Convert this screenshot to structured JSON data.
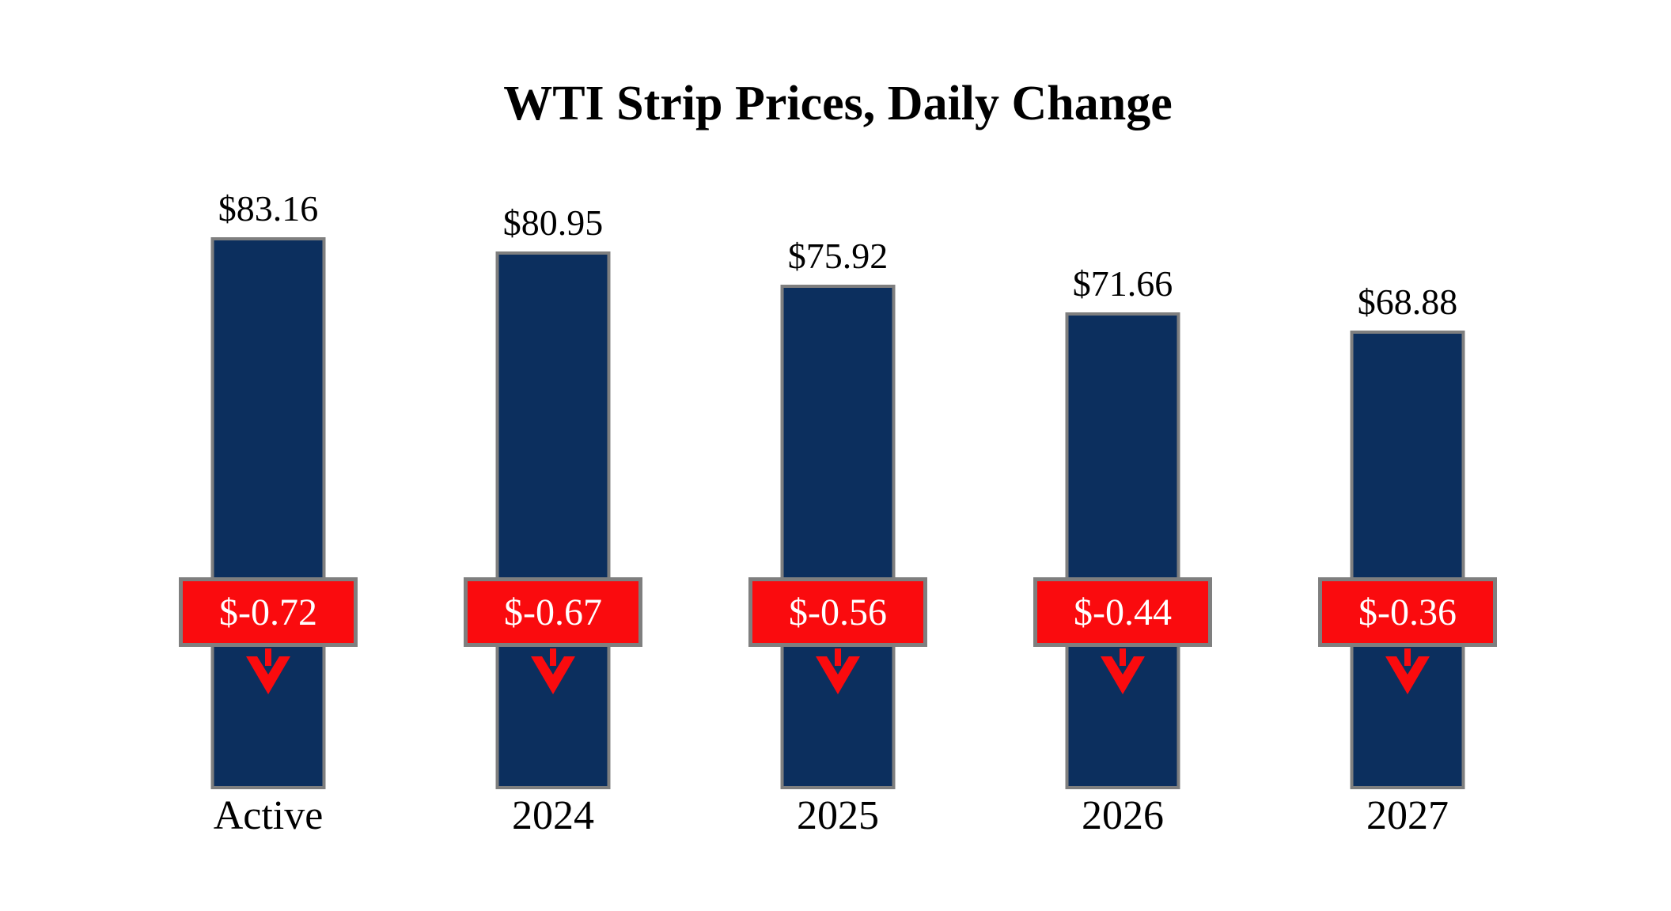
{
  "chart_data": {
    "type": "bar",
    "title": "WTI Strip Prices, Daily Change",
    "categories": [
      "Active",
      "2024",
      "2025",
      "2026",
      "2027"
    ],
    "values": [
      83.16,
      80.95,
      75.92,
      71.66,
      68.88
    ],
    "value_labels": [
      "$83.16",
      "$80.95",
      "$75.92",
      "$71.66",
      "$68.88"
    ],
    "changes": [
      -0.72,
      -0.67,
      -0.56,
      -0.44,
      -0.36
    ],
    "change_labels": [
      "$-0.72",
      "$-0.67",
      "$-0.56",
      "$-0.44",
      "$-0.36"
    ],
    "xlabel": "",
    "ylabel": "",
    "ylim": [
      0,
      90
    ],
    "grid": false,
    "legend": "none",
    "colors": {
      "bar": "#0C2F5E",
      "bar_border": "#7F7F7F",
      "change_badge": "#FA0B0E",
      "badge_border": "#7F7F7F",
      "badge_text": "#FFFFFF",
      "text": "#000000",
      "background": "#FFFFFF"
    }
  }
}
